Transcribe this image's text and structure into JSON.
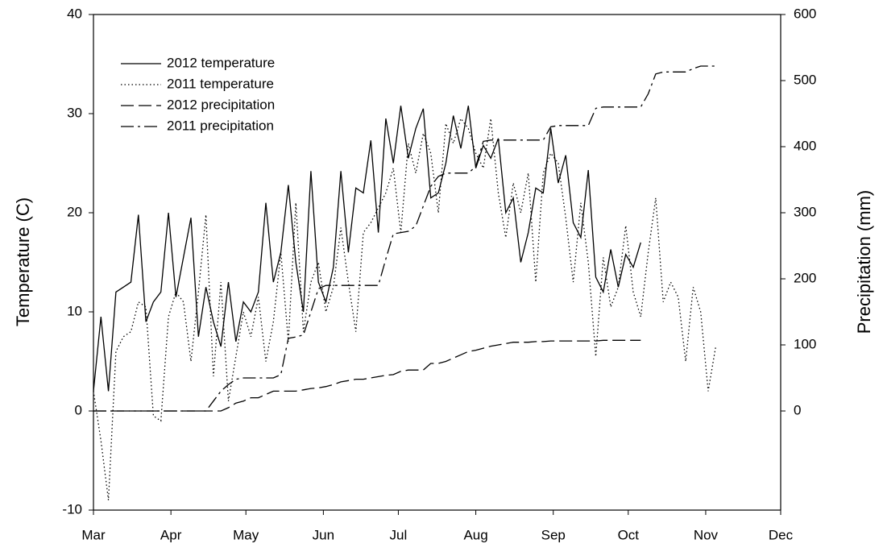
{
  "chart_data": {
    "type": "line",
    "x": [
      0,
      3,
      6,
      9,
      12,
      15,
      18,
      21,
      24,
      27,
      30,
      33,
      36,
      39,
      42,
      45,
      48,
      51,
      54,
      57,
      60,
      63,
      66,
      69,
      72,
      75,
      78,
      81,
      84,
      87,
      90,
      93,
      96,
      99,
      102,
      105,
      108,
      111,
      114,
      117,
      120,
      123,
      126,
      129,
      132,
      135,
      138,
      141,
      144,
      147,
      150,
      153,
      156,
      159,
      162,
      165,
      168,
      171,
      174,
      177,
      180,
      183,
      186,
      189,
      192,
      195,
      198,
      201,
      204,
      207,
      210,
      213,
      216,
      219,
      222,
      225,
      228,
      231,
      234,
      237,
      240,
      243,
      246,
      249
    ],
    "xlim": [
      0,
      275
    ],
    "xticks": [
      {
        "value": 0,
        "label": "Mar"
      },
      {
        "value": 31,
        "label": "Apr"
      },
      {
        "value": 61,
        "label": "May"
      },
      {
        "value": 92,
        "label": "Jun"
      },
      {
        "value": 122,
        "label": "Jul"
      },
      {
        "value": 153,
        "label": "Aug"
      },
      {
        "value": 184,
        "label": "Sep"
      },
      {
        "value": 214,
        "label": "Oct"
      },
      {
        "value": 245,
        "label": "Nov"
      },
      {
        "value": 275,
        "label": "Dec"
      }
    ],
    "ylabel": "Temperature (C)",
    "ylim": [
      -10,
      40
    ],
    "yticks": [
      -10,
      0,
      10,
      20,
      30,
      40
    ],
    "y2label": "Precipitation (mm)",
    "y2lim": [
      -150,
      600
    ],
    "y2ticks": [
      0,
      100,
      200,
      300,
      400,
      500,
      600
    ],
    "grid": false,
    "legend": "upper left",
    "series": [
      {
        "name": "2012 temperature",
        "color": "#000000",
        "style": "solid",
        "values": [
          2,
          9.5,
          2,
          12,
          12.5,
          13,
          19.8,
          9,
          11,
          12,
          20,
          11.5,
          15.5,
          19.5,
          7.5,
          12.5,
          9,
          6.5,
          13,
          7,
          11,
          10,
          12,
          21,
          13,
          16,
          22.8,
          15,
          10,
          24.2,
          13,
          11,
          14.5,
          24.2,
          16,
          22.5,
          22,
          27.3,
          18,
          29.5,
          25,
          30.8,
          25.5,
          28.5,
          30.5,
          21.5,
          22,
          25,
          29.8,
          26.5,
          30.8,
          24.5,
          26.8,
          25.5,
          27.5,
          20,
          21.5,
          15,
          18,
          22.5,
          22,
          28.5,
          23,
          25.8,
          19,
          17.5,
          24.3,
          13.5,
          12,
          16.3,
          12.5,
          15.8,
          14.5,
          17,
          null,
          null,
          null,
          null,
          null,
          null,
          null,
          null,
          null,
          null
        ]
      },
      {
        "name": "2011 temperature",
        "color": "#000000",
        "style": "dotted",
        "values": [
          2,
          -3,
          -9,
          6,
          7.5,
          8,
          11,
          10.5,
          -0.5,
          -1,
          9.5,
          12,
          11,
          5,
          12,
          19.8,
          3.5,
          13,
          1,
          5.5,
          10,
          7.5,
          11.5,
          5,
          9,
          16,
          7,
          21,
          8,
          13,
          15,
          10,
          12.5,
          18.5,
          13,
          8,
          18,
          19,
          20.5,
          22,
          24.5,
          18,
          27,
          24,
          28,
          26,
          20,
          29,
          27,
          29.5,
          28.5,
          26,
          24.5,
          29.5,
          22,
          17.5,
          23,
          20,
          24,
          13,
          24,
          26,
          25,
          19.5,
          13,
          21,
          15,
          5.5,
          15.5,
          10.5,
          12.5,
          18.7,
          12,
          9.5,
          16,
          21.5,
          11,
          13,
          11.5,
          5,
          12.5,
          10,
          2,
          6.5
        ]
      },
      {
        "name": "2012 precipitation",
        "color": "#000000",
        "style": "dashed",
        "axis": "y2",
        "values": [
          0,
          0,
          0,
          0,
          0,
          0,
          0,
          0,
          0,
          0,
          0,
          0,
          0,
          0,
          0,
          0,
          0,
          0,
          5,
          12,
          15,
          20,
          20,
          25,
          30,
          30,
          30,
          30,
          32,
          34,
          35,
          37,
          40,
          44,
          46,
          48,
          48,
          50,
          52,
          54,
          55,
          60,
          62,
          62,
          62,
          72,
          72,
          75,
          80,
          85,
          90,
          92,
          95,
          98,
          100,
          102,
          104,
          104,
          104,
          105,
          105,
          106,
          106,
          106,
          106,
          106,
          106,
          106,
          107,
          107,
          107,
          107,
          107,
          107,
          null,
          null,
          null,
          null,
          null,
          null,
          null,
          null,
          null,
          null
        ]
      },
      {
        "name": "2011 precipitation",
        "color": "#000000",
        "style": "dashdot",
        "axis": "y2",
        "values": [
          0,
          0,
          0,
          0,
          0,
          0,
          0,
          0,
          0,
          0,
          0,
          0,
          0,
          0,
          0,
          0,
          15,
          30,
          40,
          48,
          50,
          50,
          50,
          50,
          50,
          55,
          110,
          112,
          115,
          150,
          185,
          190,
          190,
          190,
          190,
          190,
          190,
          190,
          190,
          230,
          268,
          270,
          272,
          280,
          310,
          340,
          355,
          360,
          360,
          360,
          360,
          370,
          408,
          410,
          410,
          410,
          410,
          410,
          410,
          410,
          410,
          430,
          432,
          432,
          432,
          432,
          432,
          458,
          460,
          460,
          460,
          460,
          460,
          460,
          480,
          510,
          513,
          513,
          513,
          513,
          518,
          522,
          522,
          522
        ]
      }
    ]
  }
}
